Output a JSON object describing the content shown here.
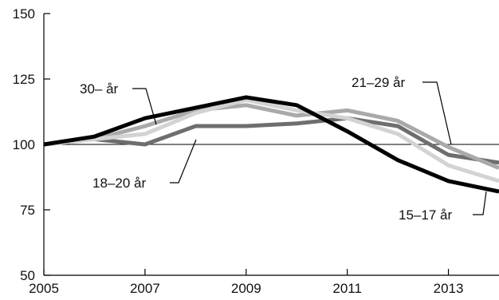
{
  "chart_data": {
    "type": "line",
    "x": [
      2005,
      2006,
      2007,
      2008,
      2009,
      2010,
      2011,
      2012,
      2013,
      2014
    ],
    "xticks": [
      2005,
      2007,
      2009,
      2011,
      2013
    ],
    "yticks": [
      50,
      75,
      100,
      125,
      150
    ],
    "xlim": [
      2005,
      2014
    ],
    "ylim": [
      50,
      150
    ],
    "reference_line": 100,
    "grid": false,
    "series": [
      {
        "name": "18–20 år",
        "color": "#6e6e6e",
        "values": [
          100,
          102,
          100,
          107,
          107,
          108,
          110,
          107,
          96,
          93
        ]
      },
      {
        "name": "21–29 år",
        "color": "#a9a9a9",
        "values": [
          100,
          102,
          107,
          113,
          115,
          111,
          113,
          109,
          99,
          91
        ]
      },
      {
        "name": "30– år",
        "color": "#d3d3d3",
        "values": [
          100,
          102,
          104,
          112,
          117,
          113,
          110,
          104,
          92,
          86
        ]
      },
      {
        "name": "15–17 år",
        "color": "#000000",
        "values": [
          100,
          103,
          110,
          114,
          118,
          115,
          105,
          94,
          86,
          82
        ]
      }
    ],
    "labels": [
      {
        "text": "30– år",
        "series": "30– år"
      },
      {
        "text": "18–20 år",
        "series": "18–20 år"
      },
      {
        "text": "21–29 år",
        "series": "21–29 år"
      },
      {
        "text": "15–17 år",
        "series": "15–17 år"
      }
    ]
  }
}
